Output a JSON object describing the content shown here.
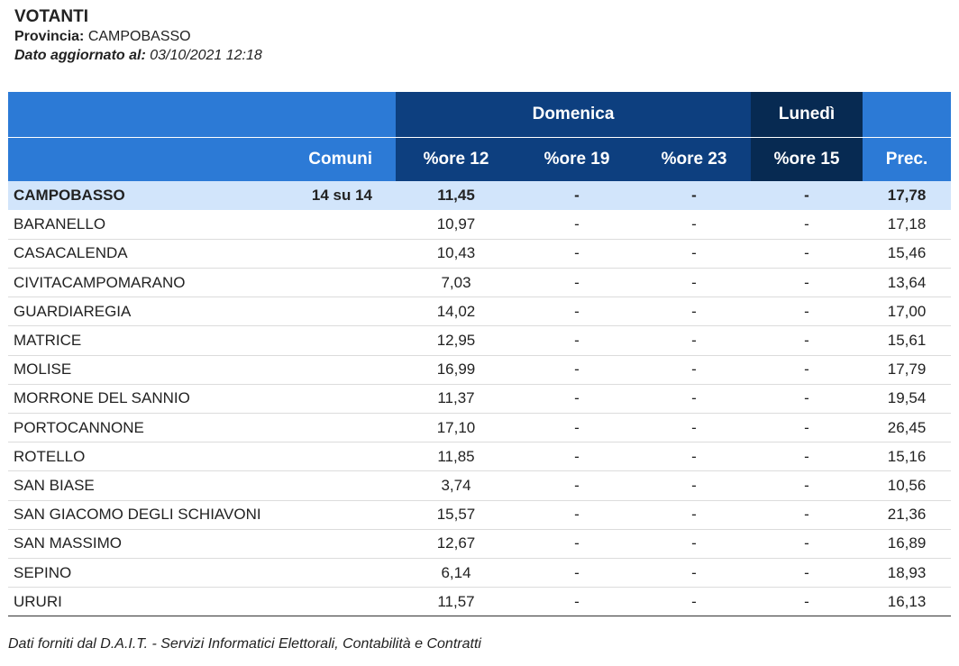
{
  "header": {
    "title": "VOTANTI",
    "province_label": "Provincia:",
    "province_value": "CAMPOBASSO",
    "updated_label": "Dato aggiornato al:",
    "updated_value": "03/10/2021 12:18"
  },
  "table": {
    "group_domenica": "Domenica",
    "group_lunedi": "Lunedì",
    "col_comuni": "Comuni",
    "col_ore12": "%ore 12",
    "col_ore19": "%ore 19",
    "col_ore23": "%ore 23",
    "col_ore15": "%ore 15",
    "col_prec": "Prec.",
    "total": {
      "name": "CAMPOBASSO",
      "count": "14 su 14",
      "ore12": "11,45",
      "ore19": "-",
      "ore23": "-",
      "ore15": "-",
      "prec": "17,78"
    },
    "rows": [
      {
        "name": "BARANELLO",
        "ore12": "10,97",
        "ore19": "-",
        "ore23": "-",
        "ore15": "-",
        "prec": "17,18"
      },
      {
        "name": "CASACALENDA",
        "ore12": "10,43",
        "ore19": "-",
        "ore23": "-",
        "ore15": "-",
        "prec": "15,46"
      },
      {
        "name": "CIVITACAMPOMARANO",
        "ore12": "7,03",
        "ore19": "-",
        "ore23": "-",
        "ore15": "-",
        "prec": "13,64"
      },
      {
        "name": "GUARDIAREGIA",
        "ore12": "14,02",
        "ore19": "-",
        "ore23": "-",
        "ore15": "-",
        "prec": "17,00"
      },
      {
        "name": "MATRICE",
        "ore12": "12,95",
        "ore19": "-",
        "ore23": "-",
        "ore15": "-",
        "prec": "15,61"
      },
      {
        "name": "MOLISE",
        "ore12": "16,99",
        "ore19": "-",
        "ore23": "-",
        "ore15": "-",
        "prec": "17,79"
      },
      {
        "name": "MORRONE DEL SANNIO",
        "ore12": "11,37",
        "ore19": "-",
        "ore23": "-",
        "ore15": "-",
        "prec": "19,54"
      },
      {
        "name": "PORTOCANNONE",
        "ore12": "17,10",
        "ore19": "-",
        "ore23": "-",
        "ore15": "-",
        "prec": "26,45"
      },
      {
        "name": "ROTELLO",
        "ore12": "11,85",
        "ore19": "-",
        "ore23": "-",
        "ore15": "-",
        "prec": "15,16"
      },
      {
        "name": "SAN BIASE",
        "ore12": "3,74",
        "ore19": "-",
        "ore23": "-",
        "ore15": "-",
        "prec": "10,56"
      },
      {
        "name": "SAN GIACOMO DEGLI SCHIAVONI",
        "ore12": "15,57",
        "ore19": "-",
        "ore23": "-",
        "ore15": "-",
        "prec": "21,36"
      },
      {
        "name": "SAN MASSIMO",
        "ore12": "12,67",
        "ore19": "-",
        "ore23": "-",
        "ore15": "-",
        "prec": "16,89"
      },
      {
        "name": "SEPINO",
        "ore12": "6,14",
        "ore19": "-",
        "ore23": "-",
        "ore15": "-",
        "prec": "18,93"
      },
      {
        "name": "URURI",
        "ore12": "11,57",
        "ore19": "-",
        "ore23": "-",
        "ore15": "-",
        "prec": "16,13"
      }
    ]
  },
  "footer": {
    "text": "Dati forniti dal D.A.I.T. - Servizi Informatici Elettorali, Contabilità e Contratti"
  },
  "colors": {
    "header_light_blue": "#2c7ad6",
    "header_domenica_blue": "#0d3f7f",
    "header_lunedi_navy": "#072a52",
    "total_row_bg": "#d2e5fb"
  }
}
